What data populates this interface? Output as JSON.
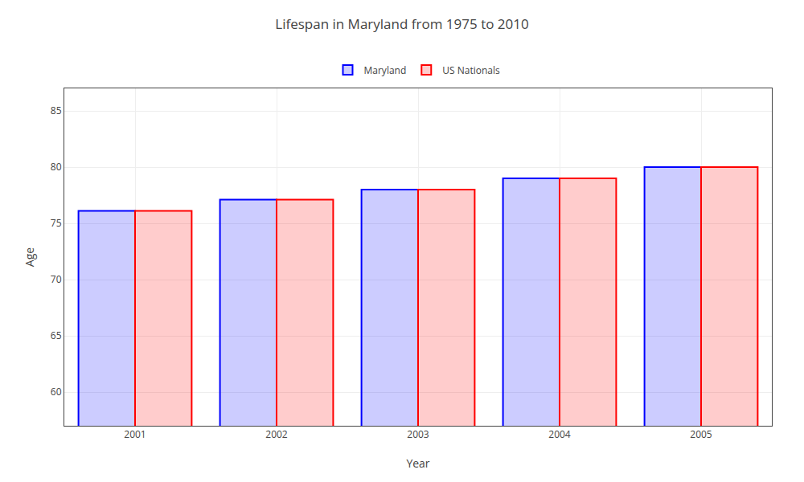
{
  "chart_data": {
    "type": "bar",
    "title": "Lifespan in Maryland from 1975 to 2010",
    "xlabel": "Year",
    "ylabel": "Age",
    "categories": [
      "2001",
      "2002",
      "2003",
      "2004",
      "2005"
    ],
    "series": [
      {
        "name": "Maryland",
        "color": "#0000ff",
        "values": [
          76.1,
          77.1,
          78.0,
          79.0,
          80.0
        ]
      },
      {
        "name": "US Nationals",
        "color": "#ff0000",
        "values": [
          76.1,
          77.1,
          78.0,
          79.0,
          80.0
        ]
      }
    ],
    "ylim": [
      57,
      87
    ],
    "yticks": [
      60,
      65,
      70,
      75,
      80,
      85
    ],
    "grid": true,
    "legend": "top"
  }
}
